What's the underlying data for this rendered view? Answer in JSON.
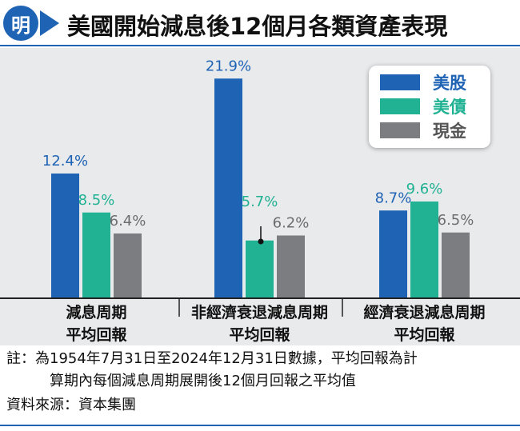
{
  "header": {
    "logo_glyph": "明",
    "title": "美國開始減息後12個月各類資產表現"
  },
  "chart_data": {
    "type": "bar",
    "title": "美國開始減息後12個月各類資產表現",
    "categories": [
      [
        "減息周期",
        "平均回報"
      ],
      [
        "非經濟衰退減息周期",
        "平均回報"
      ],
      [
        "經濟衰退減息周期",
        "平均回報"
      ]
    ],
    "series": [
      {
        "name": "美股",
        "values": [
          12.4,
          21.9,
          8.7
        ],
        "color": "#1f63b5"
      },
      {
        "name": "美債",
        "values": [
          8.5,
          5.7,
          9.6
        ],
        "color": "#20b293"
      },
      {
        "name": "現金",
        "values": [
          6.4,
          6.2,
          6.5
        ],
        "color": "#7b7d80"
      }
    ],
    "data_labels": [
      [
        "12.4%",
        "8.5%",
        "6.4%"
      ],
      [
        "21.9%",
        "5.7%",
        "6.2%"
      ],
      [
        "8.7%",
        "9.6%",
        "6.5%"
      ]
    ],
    "unit": "%",
    "ylim": [
      0,
      24
    ],
    "grid": false,
    "legend_position": "top-right",
    "background_color": "#e9eaec"
  },
  "footer": {
    "note_line1": "註：為1954年7月31日至2024年12月31日數據，平均回報為計",
    "note_line2": "算期內每個減息周期展開後12個月回報之平均值",
    "source": "資料來源：資本集團"
  }
}
